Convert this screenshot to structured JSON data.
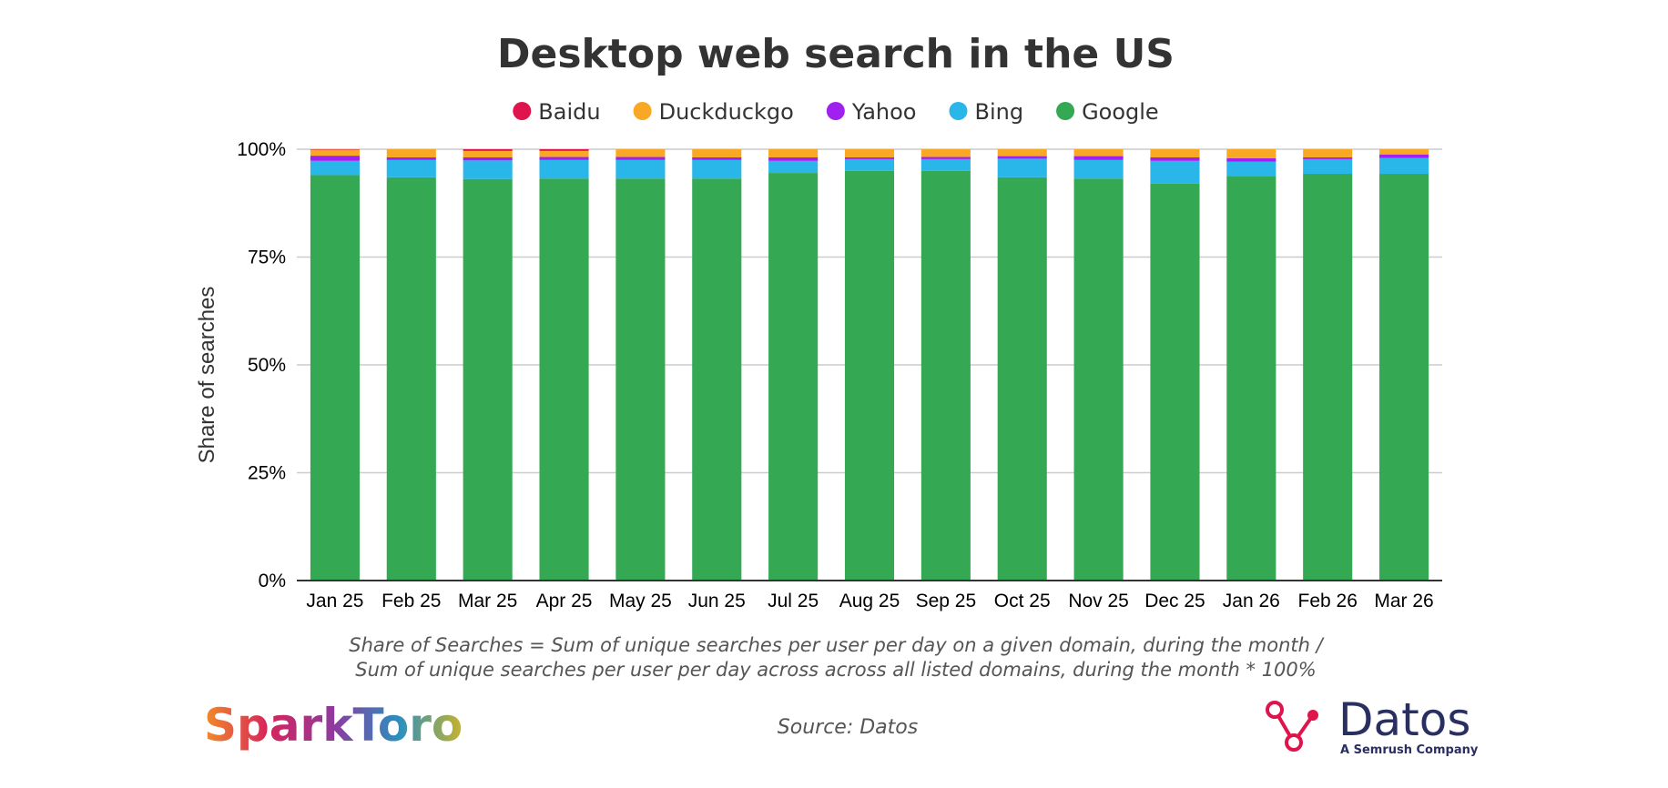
{
  "chart_data": {
    "type": "bar",
    "stacked": true,
    "title": "Desktop web search in the US",
    "xlabel": "",
    "ylabel": "Share of searches",
    "ylim": [
      0,
      100
    ],
    "y_ticks": [
      "0%",
      "25%",
      "50%",
      "75%",
      "100%"
    ],
    "y_tick_values": [
      0,
      25,
      50,
      75,
      100
    ],
    "grid": true,
    "legend_position": "top",
    "categories": [
      "Jan 25",
      "Feb 25",
      "Mar 25",
      "Apr 25",
      "May 25",
      "Jun 25",
      "Jul 25",
      "Aug 25",
      "Sep 25",
      "Oct 25",
      "Nov 25",
      "Dec 25",
      "Jan 26",
      "Feb 26",
      "Mar 26"
    ],
    "series": [
      {
        "name": "Google",
        "color": "#34a853",
        "values": [
          94.0,
          93.5,
          93.1,
          93.2,
          93.2,
          93.2,
          94.5,
          95.0,
          95.0,
          93.5,
          93.2,
          92.0,
          93.8,
          94.3,
          94.3
        ]
      },
      {
        "name": "Bing",
        "color": "#29b6e8",
        "values": [
          3.3,
          4.0,
          4.3,
          4.3,
          4.3,
          4.3,
          2.8,
          2.7,
          2.7,
          4.3,
          4.3,
          5.3,
          3.3,
          3.4,
          3.7
        ]
      },
      {
        "name": "Yahoo",
        "color": "#a020f0",
        "values": [
          1.2,
          0.6,
          0.7,
          0.7,
          0.7,
          0.6,
          0.8,
          0.4,
          0.5,
          0.6,
          0.9,
          0.8,
          0.8,
          0.4,
          0.8
        ]
      },
      {
        "name": "Duckduckgo",
        "color": "#f9a825",
        "values": [
          1.4,
          1.9,
          1.5,
          1.4,
          1.8,
          1.9,
          1.9,
          1.9,
          1.8,
          1.6,
          1.6,
          1.9,
          2.1,
          1.9,
          1.2
        ]
      },
      {
        "name": "Baidu",
        "color": "#e0144c",
        "values": [
          0.1,
          0.0,
          0.4,
          0.4,
          0.0,
          0.0,
          0.0,
          0.0,
          0.0,
          0.0,
          0.0,
          0.0,
          0.0,
          0.0,
          0.0
        ]
      }
    ],
    "legend_order": [
      "Baidu",
      "Duckduckgo",
      "Yahoo",
      "Bing",
      "Google"
    ],
    "annotations": [
      "Share of Searches = Sum of unique searches per user per day on a given domain, during the month /",
      "Sum of unique searches per user per day across across all listed domains, during the month * 100%"
    ],
    "source": "Source: Datos"
  },
  "logos": {
    "sparktoro": "SparkToro",
    "datos": "Datos",
    "datos_sub": "A Semrush Company"
  }
}
